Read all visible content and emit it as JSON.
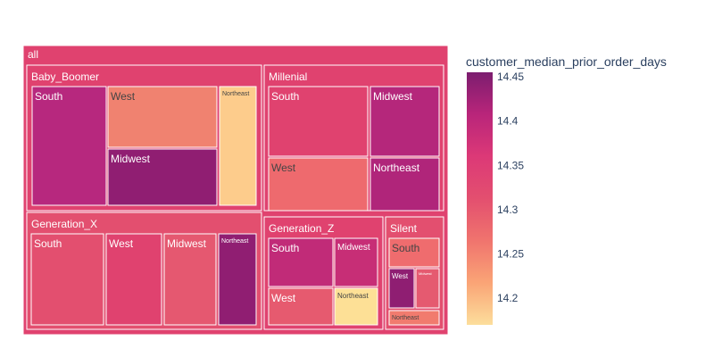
{
  "chart_data": {
    "type": "treemap",
    "root": {
      "label": "all",
      "color": "#e0426f"
    },
    "colorbar": {
      "title": "customer_median_prior_order_days",
      "range": [
        14.17,
        14.455
      ],
      "ticks": [
        14.2,
        14.25,
        14.3,
        14.35,
        14.4,
        14.45
      ],
      "tick_labels": [
        "14.2",
        "14.25",
        "14.3",
        "14.35",
        "14.4",
        "14.45"
      ],
      "colorscale": [
        "#fcde9c",
        "#faa476",
        "#f0746e",
        "#e34f6f",
        "#dc3977",
        "#b9257a",
        "#7c1d6f"
      ]
    },
    "groups": [
      {
        "label": "Baby_Boomer",
        "color": "#e0426f",
        "children": [
          {
            "label": "South",
            "value": 14.41,
            "color": "#b7287e"
          },
          {
            "label": "West",
            "value": 14.28,
            "color": "#f08270"
          },
          {
            "label": "Northeast",
            "value": 14.19,
            "color": "#fdcc8c"
          },
          {
            "label": "Midwest",
            "value": 14.44,
            "color": "#901e72"
          }
        ]
      },
      {
        "label": "Millenial",
        "color": "#e0426f",
        "children": [
          {
            "label": "South",
            "value": 14.36,
            "color": "#e0426f"
          },
          {
            "label": "Midwest",
            "value": 14.41,
            "color": "#b5277b"
          },
          {
            "label": "West",
            "value": 14.3,
            "color": "#ee6a6e"
          },
          {
            "label": "Northeast",
            "value": 14.41,
            "color": "#b0257a"
          }
        ]
      },
      {
        "label": "Generation_X",
        "color": "#e34f6f",
        "children": [
          {
            "label": "South",
            "value": 14.34,
            "color": "#e34f6f"
          },
          {
            "label": "West",
            "value": 14.36,
            "color": "#e0426f"
          },
          {
            "label": "Midwest",
            "value": 14.33,
            "color": "#e55870"
          },
          {
            "label": "Northeast",
            "value": 14.44,
            "color": "#901e72"
          }
        ]
      },
      {
        "label": "Generation_Z",
        "color": "#e0426f",
        "children": [
          {
            "label": "South",
            "value": 14.39,
            "color": "#c12b78"
          },
          {
            "label": "Midwest",
            "value": 14.38,
            "color": "#c72e76"
          },
          {
            "label": "West",
            "value": 14.33,
            "color": "#e65a6f"
          },
          {
            "label": "Northeast",
            "value": 14.18,
            "color": "#fde096"
          }
        ]
      },
      {
        "label": "Silent",
        "color": "#e34f6f",
        "children": [
          {
            "label": "South",
            "value": 14.3,
            "color": "#ef6c6e"
          },
          {
            "label": "West",
            "value": 14.44,
            "color": "#8f1e72"
          },
          {
            "label": "Midwest",
            "value": 14.33,
            "color": "#e55a70"
          },
          {
            "label": "Northeast",
            "value": 14.29,
            "color": "#f17b6e"
          }
        ]
      }
    ]
  }
}
